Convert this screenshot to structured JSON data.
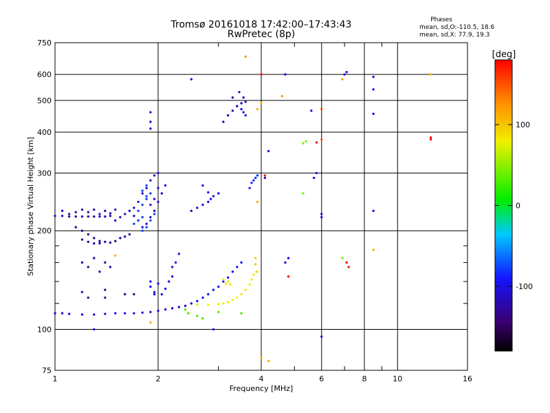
{
  "chart_data": {
    "type": "scatter",
    "title": "Tromsø 20161018 17:42:00–17:43:43",
    "subtitle": "RwPretec (8p)",
    "phases_box": {
      "heading": "Phases",
      "line1": "mean, sd,O:-110.5, 18.6",
      "line2": "mean, sd,X:  77.9, 19.3"
    },
    "xlabel": "Frequency [MHz]",
    "ylabel": "Stationary phase Virtual Height [km]",
    "x_scale": "log",
    "y_scale": "log",
    "xlim": [
      1,
      16
    ],
    "ylim": [
      75,
      750
    ],
    "x_ticks": [
      {
        "value": 1,
        "label": "1"
      },
      {
        "value": 2,
        "label": "2"
      },
      {
        "value": 4,
        "label": "4"
      },
      {
        "value": 6,
        "label": "6"
      },
      {
        "value": 8,
        "label": "8"
      },
      {
        "value": 10,
        "label": "10"
      },
      {
        "value": 16,
        "label": "16"
      }
    ],
    "x_grid": [
      2,
      4,
      6,
      8,
      10
    ],
    "x_minor": [
      3,
      5,
      7,
      9
    ],
    "y_ticks": [
      {
        "value": 75,
        "label": "75"
      },
      {
        "value": 100,
        "label": "100"
      },
      {
        "value": 200,
        "label": "200"
      },
      {
        "value": 300,
        "label": "300"
      },
      {
        "value": 400,
        "label": "400"
      },
      {
        "value": 500,
        "label": "500"
      },
      {
        "value": 600,
        "label": "600"
      },
      {
        "value": 750,
        "label": "750"
      }
    ],
    "y_grid": [
      100,
      200,
      300,
      400,
      500,
      600
    ],
    "y_minor": [
      120,
      140,
      160,
      180
    ],
    "grid": true,
    "colorbar": {
      "label": "[deg]",
      "range": [
        -180,
        180
      ],
      "ticks": [
        {
          "value": 100,
          "label": "100"
        },
        {
          "value": 0,
          "label": "0"
        },
        {
          "value": -100,
          "label": "-100"
        }
      ]
    },
    "traces": [
      {
        "phase": -105,
        "points": [
          [
            1.0,
            112
          ],
          [
            1.1,
            111.5
          ],
          [
            1.2,
            111
          ],
          [
            1.3,
            111
          ],
          [
            1.4,
            111.5
          ],
          [
            1.5,
            112
          ],
          [
            1.6,
            112
          ],
          [
            1.7,
            112
          ],
          [
            1.8,
            112.5
          ],
          [
            1.9,
            113
          ],
          [
            2.0,
            114
          ],
          [
            2.1,
            115
          ],
          [
            2.2,
            116
          ],
          [
            2.3,
            117
          ],
          [
            2.4,
            118
          ],
          [
            2.5,
            120
          ]
        ]
      },
      {
        "phase": -90,
        "points": [
          [
            2.6,
            122
          ],
          [
            2.7,
            125
          ],
          [
            2.8,
            128
          ],
          [
            2.9,
            132
          ],
          [
            3.0,
            135
          ],
          [
            3.1,
            140
          ],
          [
            3.2,
            144
          ],
          [
            3.3,
            150
          ],
          [
            3.4,
            155
          ],
          [
            3.5,
            160
          ]
        ]
      },
      {
        "phase": 80,
        "points": [
          [
            2.6,
            119
          ],
          [
            2.8,
            119
          ],
          [
            3.0,
            119.5
          ],
          [
            3.1,
            120
          ],
          [
            3.2,
            121
          ],
          [
            3.3,
            123
          ],
          [
            3.4,
            125
          ],
          [
            3.5,
            128
          ],
          [
            3.6,
            132
          ],
          [
            3.7,
            137
          ],
          [
            3.75,
            142
          ],
          [
            3.8,
            147
          ]
        ]
      },
      {
        "phase": 85,
        "points": [
          [
            3.1,
            142
          ],
          [
            3.15,
            138
          ],
          [
            3.2,
            140
          ],
          [
            3.25,
            137
          ]
        ]
      },
      {
        "phase": 95,
        "points": [
          [
            3.85,
            165
          ],
          [
            3.85,
            158
          ],
          [
            3.88,
            150
          ]
        ]
      },
      {
        "phase": -115,
        "points": [
          [
            1.0,
            222
          ],
          [
            1.05,
            222
          ],
          [
            1.1,
            221
          ],
          [
            1.15,
            221
          ],
          [
            1.2,
            221
          ],
          [
            1.25,
            221
          ],
          [
            1.3,
            221
          ],
          [
            1.35,
            221
          ],
          [
            1.4,
            221
          ],
          [
            1.45,
            222
          ]
        ]
      },
      {
        "phase": -120,
        "points": [
          [
            1.05,
            230
          ],
          [
            1.1,
            225
          ],
          [
            1.15,
            228
          ],
          [
            1.2,
            232
          ],
          [
            1.25,
            228
          ],
          [
            1.3,
            232
          ],
          [
            1.35,
            225
          ],
          [
            1.4,
            230
          ],
          [
            1.45,
            226
          ],
          [
            1.5,
            232
          ]
        ]
      },
      {
        "phase": -125,
        "points": [
          [
            1.15,
            205
          ],
          [
            1.2,
            200
          ],
          [
            1.25,
            195
          ],
          [
            1.3,
            190
          ],
          [
            1.35,
            186
          ],
          [
            1.4,
            185
          ],
          [
            1.45,
            184
          ],
          [
            1.5,
            186
          ],
          [
            1.55,
            190
          ],
          [
            1.6,
            192
          ],
          [
            1.65,
            195
          ],
          [
            1.2,
            188
          ],
          [
            1.25,
            185
          ],
          [
            1.3,
            183
          ],
          [
            1.35,
            183
          ]
        ]
      },
      {
        "phase": -110,
        "points": [
          [
            1.5,
            215
          ],
          [
            1.55,
            220
          ],
          [
            1.6,
            225
          ],
          [
            1.65,
            230
          ],
          [
            1.7,
            222
          ],
          [
            1.75,
            215
          ],
          [
            1.8,
            205
          ],
          [
            1.85,
            210
          ],
          [
            1.9,
            220
          ],
          [
            1.95,
            230
          ],
          [
            2.0,
            245
          ],
          [
            2.05,
            260
          ],
          [
            2.1,
            275
          ],
          [
            1.7,
            235
          ],
          [
            1.75,
            245
          ],
          [
            1.8,
            260
          ],
          [
            1.85,
            270
          ],
          [
            1.9,
            285
          ],
          [
            1.95,
            295
          ],
          [
            2.0,
            300
          ],
          [
            1.9,
            240
          ],
          [
            1.95,
            250
          ],
          [
            2.0,
            270
          ]
        ]
      },
      {
        "phase": -75,
        "points": [
          [
            1.7,
            210
          ],
          [
            1.75,
            215
          ],
          [
            1.8,
            220
          ],
          [
            1.75,
            230
          ],
          [
            1.8,
            240
          ],
          [
            1.85,
            250
          ],
          [
            1.9,
            260
          ],
          [
            1.8,
            200
          ],
          [
            1.85,
            205
          ],
          [
            1.9,
            215
          ],
          [
            1.95,
            225
          ],
          [
            1.85,
            255
          ],
          [
            1.8,
            265
          ],
          [
            1.85,
            275
          ]
        ]
      },
      {
        "phase": -105,
        "points": [
          [
            2.5,
            230
          ],
          [
            2.6,
            235
          ],
          [
            2.7,
            240
          ],
          [
            2.8,
            245
          ],
          [
            2.85,
            250
          ],
          [
            2.9,
            255
          ]
        ]
      },
      {
        "phase": -120,
        "points": [
          [
            1.2,
            160
          ],
          [
            1.25,
            155
          ],
          [
            1.3,
            165
          ],
          [
            1.35,
            150
          ],
          [
            1.4,
            160
          ],
          [
            1.45,
            155
          ],
          [
            1.2,
            130
          ],
          [
            1.25,
            125
          ],
          [
            1.4,
            132
          ],
          [
            1.4,
            125
          ],
          [
            1.6,
            128
          ],
          [
            1.7,
            128
          ],
          [
            1.05,
            112
          ]
        ]
      },
      {
        "phase": -95,
        "points": [
          [
            1.9,
            135
          ],
          [
            1.95,
            130
          ],
          [
            2.0,
            138
          ],
          [
            2.05,
            128
          ],
          [
            2.1,
            133
          ],
          [
            2.15,
            140
          ],
          [
            2.2,
            145
          ],
          [
            2.25,
            160
          ],
          [
            2.3,
            170
          ],
          [
            2.2,
            155
          ],
          [
            1.9,
            140
          ],
          [
            1.95,
            128
          ]
        ]
      },
      {
        "phase": -115,
        "points": [
          [
            3.1,
            430
          ],
          [
            3.2,
            450
          ],
          [
            3.3,
            465
          ],
          [
            3.4,
            480
          ],
          [
            3.5,
            490
          ],
          [
            3.6,
            495
          ],
          [
            3.3,
            510
          ],
          [
            3.45,
            530
          ],
          [
            3.55,
            510
          ]
        ]
      },
      {
        "phase": -90,
        "points": [
          [
            3.5,
            470
          ],
          [
            3.55,
            460
          ],
          [
            3.6,
            450
          ]
        ]
      },
      {
        "phase": -85,
        "points": [
          [
            3.7,
            270
          ],
          [
            3.75,
            280
          ],
          [
            3.8,
            285
          ],
          [
            3.85,
            290
          ],
          [
            3.9,
            295
          ]
        ]
      },
      {
        "phase": -100,
        "points": [
          [
            1.9,
            460
          ],
          [
            1.9,
            430
          ],
          [
            1.9,
            410
          ]
        ]
      },
      {
        "phase": -95,
        "points": [
          [
            2.5,
            580
          ]
        ]
      },
      {
        "phase": 120,
        "points": [
          [
            3.6,
            680
          ],
          [
            4.6,
            515
          ],
          [
            6.9,
            580
          ]
        ]
      },
      {
        "phase": 150,
        "points": [
          [
            6.0,
            470
          ],
          [
            6.0,
            380
          ]
        ]
      },
      {
        "phase": -105,
        "points": [
          [
            7.0,
            600
          ],
          [
            7.1,
            610
          ],
          [
            4.7,
            600
          ],
          [
            5.6,
            465
          ],
          [
            6.0,
            225
          ],
          [
            6.0,
            220
          ],
          [
            8.5,
            590
          ],
          [
            8.5,
            540
          ],
          [
            8.5,
            455
          ],
          [
            5.8,
            300
          ],
          [
            5.7,
            290
          ]
        ]
      },
      {
        "phase": 45,
        "points": [
          [
            5.3,
            370
          ],
          [
            5.4,
            375
          ],
          [
            6.9,
            165
          ],
          [
            5.3,
            260
          ]
        ]
      },
      {
        "phase": 30,
        "points": [
          [
            2.4,
            115
          ],
          [
            2.45,
            112
          ],
          [
            2.6,
            110
          ],
          [
            2.7,
            108
          ],
          [
            3.0,
            113
          ],
          [
            3.5,
            112
          ]
        ]
      },
      {
        "phase": -100,
        "points": [
          [
            4.2,
            350
          ],
          [
            4.1,
            290
          ],
          [
            4.7,
            160
          ],
          [
            4.8,
            165
          ],
          [
            6.0,
            95
          ],
          [
            8.5,
            230
          ],
          [
            2.7,
            275
          ],
          [
            2.8,
            262
          ],
          [
            3.0,
            260
          ],
          [
            1.3,
            100
          ],
          [
            2.9,
            100
          ]
        ]
      },
      {
        "phase": 175,
        "points": [
          [
            7.1,
            160
          ],
          [
            7.2,
            155
          ],
          [
            4.1,
            295
          ],
          [
            4.8,
            145
          ],
          [
            5.8,
            372
          ],
          [
            4.0,
            600
          ],
          [
            12.5,
            385
          ],
          [
            12.5,
            380
          ]
        ]
      },
      {
        "phase": 110,
        "points": [
          [
            3.9,
            470
          ],
          [
            4.0,
            490
          ],
          [
            3.9,
            245
          ],
          [
            4.0,
            82
          ],
          [
            4.2,
            80
          ],
          [
            8.5,
            175
          ],
          [
            12.5,
            600
          ],
          [
            1.9,
            105
          ],
          [
            1.5,
            168
          ]
        ]
      }
    ]
  }
}
